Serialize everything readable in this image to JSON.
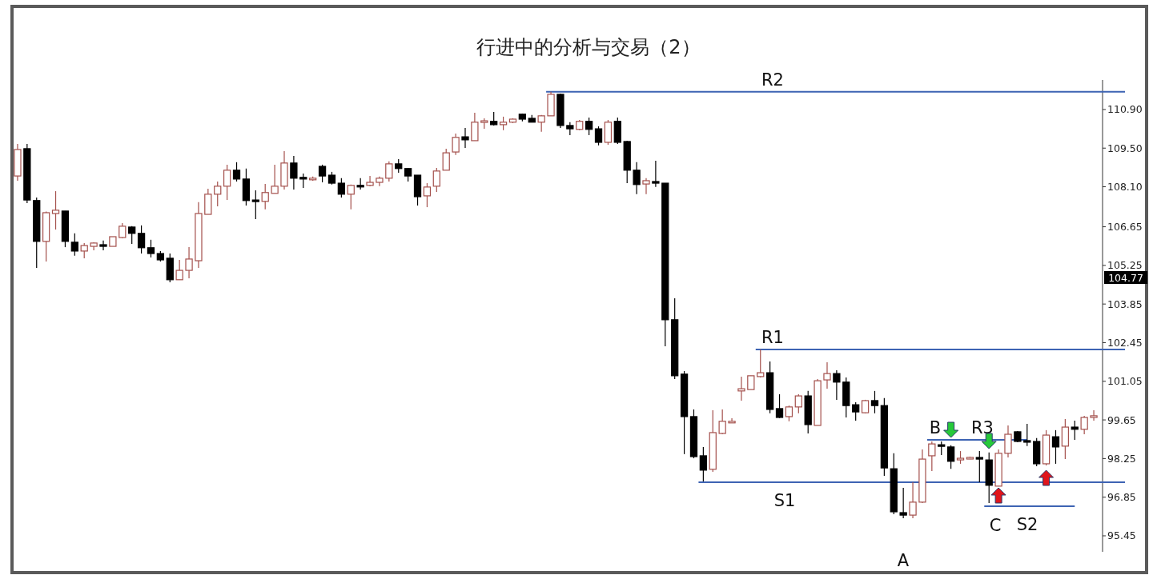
{
  "chart_data": {
    "type": "candlestick",
    "title": "行进中的分析与交易（2）",
    "categories": [
      null,
      null,
      null,
      null,
      null,
      null,
      null,
      null,
      null,
      null,
      null,
      null,
      null,
      null,
      null,
      null,
      null,
      null,
      null,
      null,
      null,
      null,
      null,
      null,
      null,
      null,
      null,
      null,
      null,
      null,
      null,
      null,
      null,
      null,
      null,
      null,
      null,
      null,
      null,
      null,
      null,
      null,
      null,
      null,
      null,
      null,
      null,
      null,
      null,
      null,
      null,
      null,
      null,
      null,
      null,
      null,
      null,
      null,
      null,
      null,
      null,
      null,
      null,
      null,
      null,
      null,
      null,
      null,
      null,
      null,
      null,
      null,
      null,
      null,
      null,
      null,
      null,
      null,
      null,
      null,
      null,
      null,
      null,
      null,
      null,
      null,
      null,
      null,
      null,
      null,
      null,
      null,
      null,
      null,
      null,
      null,
      null,
      null,
      null,
      null,
      null,
      null,
      null,
      null,
      null,
      null,
      null,
      null,
      null,
      null,
      null,
      null,
      null,
      null
    ],
    "ohlc": [
      [
        108.49,
        109.65,
        108.32,
        109.45
      ],
      [
        109.48,
        109.65,
        107.51,
        107.62
      ],
      [
        107.6,
        107.71,
        105.16,
        106.12
      ],
      [
        106.12,
        107.2,
        105.39,
        107.16
      ],
      [
        107.13,
        107.94,
        106.55,
        107.25
      ],
      [
        107.22,
        107.22,
        105.91,
        106.12
      ],
      [
        106.09,
        106.41,
        105.6,
        105.77
      ],
      [
        105.77,
        106.06,
        105.51,
        105.97
      ],
      [
        105.94,
        106.09,
        105.8,
        106.06
      ],
      [
        106.0,
        106.15,
        105.8,
        105.94
      ],
      [
        105.94,
        106.29,
        105.94,
        106.29
      ],
      [
        106.26,
        106.78,
        106.23,
        106.67
      ],
      [
        106.64,
        106.67,
        106.03,
        106.41
      ],
      [
        106.41,
        106.7,
        105.68,
        105.89
      ],
      [
        105.89,
        106.18,
        105.54,
        105.68
      ],
      [
        105.68,
        105.77,
        105.39,
        105.45
      ],
      [
        105.51,
        105.68,
        104.64,
        104.73
      ],
      [
        104.73,
        105.45,
        104.73,
        105.07
      ],
      [
        105.07,
        105.91,
        104.78,
        105.48
      ],
      [
        105.42,
        107.54,
        105.16,
        107.13
      ],
      [
        107.1,
        108.03,
        107.1,
        107.83
      ],
      [
        107.83,
        108.29,
        107.39,
        108.12
      ],
      [
        108.12,
        108.9,
        107.62,
        108.7
      ],
      [
        108.7,
        108.99,
        108.29,
        108.38
      ],
      [
        108.38,
        108.76,
        107.42,
        107.6
      ],
      [
        107.62,
        107.97,
        106.93,
        107.57
      ],
      [
        107.57,
        108.2,
        107.28,
        107.89
      ],
      [
        107.86,
        108.9,
        107.86,
        108.12
      ],
      [
        108.12,
        109.39,
        108.0,
        108.96
      ],
      [
        108.96,
        109.22,
        108.0,
        108.41
      ],
      [
        108.44,
        108.58,
        108.06,
        108.38
      ],
      [
        108.38,
        108.47,
        108.32,
        108.41
      ],
      [
        108.84,
        108.9,
        108.26,
        108.49
      ],
      [
        108.52,
        108.64,
        108.18,
        108.23
      ],
      [
        108.23,
        108.41,
        107.71,
        107.83
      ],
      [
        107.83,
        108.18,
        107.28,
        108.15
      ],
      [
        108.15,
        108.41,
        108.0,
        108.12
      ],
      [
        108.15,
        108.49,
        108.12,
        108.26
      ],
      [
        108.26,
        108.47,
        108.12,
        108.41
      ],
      [
        108.41,
        109.02,
        108.29,
        108.93
      ],
      [
        108.93,
        109.1,
        108.61,
        108.76
      ],
      [
        108.76,
        108.78,
        108.29,
        108.49
      ],
      [
        108.52,
        108.52,
        107.42,
        107.74
      ],
      [
        107.77,
        108.23,
        107.36,
        108.09
      ],
      [
        108.12,
        108.78,
        107.91,
        108.67
      ],
      [
        108.7,
        109.48,
        108.7,
        109.33
      ],
      [
        109.36,
        110.03,
        109.25,
        109.89
      ],
      [
        109.91,
        110.23,
        109.51,
        109.8
      ],
      [
        109.77,
        110.78,
        109.77,
        110.44
      ],
      [
        110.47,
        110.58,
        110.2,
        110.49
      ],
      [
        110.47,
        110.81,
        110.32,
        110.35
      ],
      [
        110.35,
        110.64,
        110.15,
        110.44
      ],
      [
        110.44,
        110.58,
        110.41,
        110.55
      ],
      [
        110.73,
        110.75,
        110.47,
        110.55
      ],
      [
        110.58,
        110.7,
        110.44,
        110.44
      ],
      [
        110.44,
        110.7,
        110.09,
        110.67
      ],
      [
        110.67,
        111.54,
        110.67,
        111.45
      ],
      [
        111.45,
        111.48,
        110.23,
        110.32
      ],
      [
        110.32,
        110.44,
        109.97,
        110.2
      ],
      [
        110.18,
        110.52,
        110.15,
        110.47
      ],
      [
        110.47,
        110.61,
        109.97,
        110.18
      ],
      [
        110.2,
        110.29,
        109.6,
        109.71
      ],
      [
        109.71,
        110.52,
        109.62,
        110.44
      ],
      [
        110.47,
        110.61,
        109.65,
        109.71
      ],
      [
        109.74,
        109.77,
        108.23,
        108.7
      ],
      [
        108.7,
        108.99,
        107.83,
        108.18
      ],
      [
        108.2,
        108.41,
        107.83,
        108.32
      ],
      [
        108.29,
        109.04,
        108.09,
        108.23
      ],
      [
        108.23,
        108.23,
        102.32,
        103.28
      ],
      [
        103.28,
        104.06,
        101.13,
        101.25
      ],
      [
        101.31,
        101.42,
        98.41,
        99.77
      ],
      [
        99.77,
        100.03,
        98.26,
        98.32
      ],
      [
        98.35,
        98.67,
        97.42,
        97.83
      ],
      [
        97.86,
        100.0,
        97.77,
        99.19
      ],
      [
        99.16,
        100.03,
        99.13,
        99.6
      ],
      [
        99.57,
        99.71,
        99.57,
        99.6
      ],
      [
        100.7,
        101.22,
        100.35,
        100.78
      ],
      [
        100.75,
        101.25,
        100.75,
        101.25
      ],
      [
        101.22,
        102.2,
        101.19,
        101.36
      ],
      [
        101.36,
        101.77,
        99.89,
        100.03
      ],
      [
        100.06,
        100.58,
        99.71,
        99.74
      ],
      [
        99.77,
        100.17,
        99.6,
        100.12
      ],
      [
        100.12,
        100.58,
        99.89,
        100.52
      ],
      [
        100.52,
        100.7,
        99.16,
        99.48
      ],
      [
        99.45,
        101.13,
        99.45,
        101.07
      ],
      [
        101.1,
        101.74,
        100.78,
        101.33
      ],
      [
        101.33,
        101.45,
        100.38,
        101.02
      ],
      [
        101.02,
        101.19,
        99.74,
        100.17
      ],
      [
        100.2,
        100.29,
        99.62,
        99.94
      ],
      [
        99.91,
        100.38,
        99.89,
        100.35
      ],
      [
        100.35,
        100.7,
        99.89,
        100.17
      ],
      [
        100.17,
        100.44,
        97.62,
        97.91
      ],
      [
        97.88,
        98.44,
        96.23,
        96.32
      ],
      [
        96.29,
        97.19,
        96.09,
        96.2
      ],
      [
        96.2,
        97.39,
        96.09,
        96.67
      ],
      [
        96.67,
        98.58,
        96.64,
        98.23
      ],
      [
        98.35,
        98.87,
        97.8,
        98.78
      ],
      [
        98.75,
        98.87,
        98.38,
        98.73
      ],
      [
        98.67,
        98.73,
        97.88,
        98.15
      ],
      [
        98.23,
        98.52,
        98.06,
        98.26
      ],
      [
        98.26,
        98.32,
        98.23,
        98.29
      ],
      [
        98.29,
        98.52,
        97.39,
        98.23
      ],
      [
        98.2,
        98.47,
        96.64,
        97.28
      ],
      [
        97.25,
        98.58,
        97.25,
        98.44
      ],
      [
        98.44,
        99.45,
        98.29,
        99.13
      ],
      [
        99.22,
        99.25,
        98.84,
        98.87
      ],
      [
        98.9,
        99.51,
        98.7,
        98.87
      ],
      [
        98.87,
        98.99,
        97.97,
        98.06
      ],
      [
        98.06,
        99.28,
        98.0,
        99.1
      ],
      [
        99.04,
        99.28,
        98.06,
        98.67
      ],
      [
        98.7,
        99.68,
        98.23,
        99.39
      ],
      [
        99.39,
        99.62,
        98.93,
        99.31
      ],
      [
        99.31,
        99.8,
        99.13,
        99.74
      ],
      [
        99.74,
        100.0,
        99.62,
        99.8
      ]
    ],
    "ylim": [
      94.87,
      111.97
    ],
    "yticks": [
      {
        "value": 95.45,
        "label": "95.45"
      },
      {
        "value": 96.85,
        "label": "96.85"
      },
      {
        "value": 98.25,
        "label": "98.25"
      },
      {
        "value": 99.65,
        "label": "99.65"
      },
      {
        "value": 101.05,
        "label": "101.05"
      },
      {
        "value": 102.45,
        "label": "102.45"
      },
      {
        "value": 103.85,
        "label": "103.85"
      },
      {
        "value": 105.25,
        "label": "105.25"
      },
      {
        "value": 106.65,
        "label": "106.65"
      },
      {
        "value": 108.1,
        "label": "108.10"
      },
      {
        "value": 109.5,
        "label": "109.50"
      },
      {
        "value": 110.9,
        "label": "110.90"
      }
    ],
    "tick_labels": "y",
    "ref_lines": [
      {
        "axis": "y",
        "value": 111.54,
        "label": "R2",
        "color": "#3d63b3"
      },
      {
        "axis": "y",
        "value": 102.2,
        "label": "R1",
        "color": "#3d63b3"
      },
      {
        "axis": "y",
        "value": 97.39,
        "label": "S1",
        "color": "#3d63b3"
      },
      {
        "axis": "y",
        "value": 98.93,
        "label": "R3",
        "color": "#3d63b3"
      },
      {
        "axis": "y",
        "value": 96.52,
        "label": "S2",
        "color": "#3d63b3"
      }
    ],
    "annotations": [
      "B",
      "C",
      "A",
      "104.77"
    ]
  }
}
